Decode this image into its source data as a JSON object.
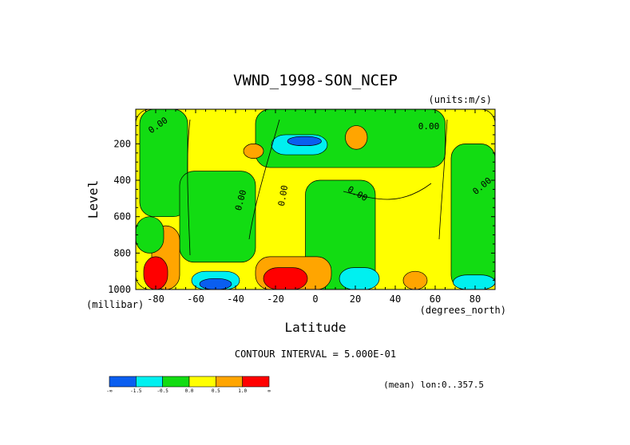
{
  "chart_data": {
    "type": "heatmap",
    "title": "VWND_1998-SON_NCEP",
    "units": "(units:m/s)",
    "xlabel": "Latitude",
    "xunits": "(degrees_north)",
    "ylabel": "Level",
    "yunits": "(millibar)",
    "xlim": [
      -90,
      90
    ],
    "ylim": [
      1000,
      10
    ],
    "x_ticks": [
      "-80",
      "-60",
      "-40",
      "-20",
      "0",
      "20",
      "40",
      "60",
      "80"
    ],
    "y_ticks": [
      "200",
      "400",
      "600",
      "800",
      "1000"
    ],
    "contour_interval_text": "CONTOUR INTERVAL = 5.000E-01",
    "mean_text": "(mean) lon:0..357.5",
    "contour_labels": [
      "0.00",
      "0.00",
      "0.00",
      "0.00",
      "0.00",
      "0.00"
    ],
    "colorbar": {
      "labels": [
        "-∞",
        "-1.5",
        "-0.5",
        "0.0",
        "0.5",
        "1.0",
        "∞"
      ],
      "colors": [
        "#0a5ef0",
        "#00f0f0",
        "#12dc12",
        "#ffff00",
        "#ffa500",
        "#ff0000"
      ]
    },
    "regions": [
      {
        "level": "0 to 0.5",
        "color": "#ffff00",
        "lat": [
          -90,
          90
        ],
        "p": [
          10,
          1000
        ]
      },
      {
        "level": "-0.5 to 0",
        "color": "#12dc12",
        "lat": [
          -88,
          -64
        ],
        "p": [
          10,
          600
        ]
      },
      {
        "level": "-0.5 to 0",
        "color": "#12dc12",
        "lat": [
          -68,
          -30
        ],
        "p": [
          350,
          850
        ]
      },
      {
        "level": "-0.5 to 0",
        "color": "#12dc12",
        "lat": [
          -30,
          65
        ],
        "p": [
          10,
          330
        ]
      },
      {
        "level": "-0.5 to 0",
        "color": "#12dc12",
        "lat": [
          -5,
          30
        ],
        "p": [
          400,
          1000
        ]
      },
      {
        "level": "-0.5 to 0",
        "color": "#12dc12",
        "lat": [
          68,
          90
        ],
        "p": [
          200,
          1000
        ]
      },
      {
        "level": "-1.5 to -0.5",
        "color": "#00f0f0",
        "lat": [
          -22,
          6
        ],
        "p": [
          150,
          260
        ]
      },
      {
        "level": "< -1.5",
        "color": "#0a5ef0",
        "lat": [
          -14,
          3
        ],
        "p": [
          160,
          210
        ]
      },
      {
        "level": "-1.5 to -0.5",
        "color": "#00f0f0",
        "lat": [
          -62,
          -38
        ],
        "p": [
          900,
          1000
        ]
      },
      {
        "level": "< -1.5",
        "color": "#0a5ef0",
        "lat": [
          -58,
          -42
        ],
        "p": [
          940,
          1000
        ]
      },
      {
        "level": "-1.5 to -0.5",
        "color": "#00f0f0",
        "lat": [
          12,
          32
        ],
        "p": [
          880,
          1000
        ]
      },
      {
        "level": "-1.5 to -0.5",
        "color": "#00f0f0",
        "lat": [
          69,
          90
        ],
        "p": [
          920,
          1000
        ]
      },
      {
        "level": "0.5 to 1.0",
        "color": "#ffa500",
        "lat": [
          -36,
          -26
        ],
        "p": [
          200,
          280
        ]
      },
      {
        "level": "0.5 to 1.0",
        "color": "#ffa500",
        "lat": [
          15,
          26
        ],
        "p": [
          100,
          230
        ]
      },
      {
        "level": "0.5 to 1.0",
        "color": "#ffa500",
        "lat": [
          -30,
          8
        ],
        "p": [
          820,
          1000
        ]
      },
      {
        "level": "> 1.0",
        "color": "#ff0000",
        "lat": [
          -26,
          -4
        ],
        "p": [
          880,
          1000
        ]
      },
      {
        "level": "0.5 to 1.0",
        "color": "#ffa500",
        "lat": [
          -82,
          -68
        ],
        "p": [
          650,
          1000
        ]
      },
      {
        "level": "> 1.0",
        "color": "#ff0000",
        "lat": [
          -86,
          -74
        ],
        "p": [
          820,
          1000
        ]
      },
      {
        "level": "0.5 to 1.0",
        "color": "#ffa500",
        "lat": [
          44,
          56
        ],
        "p": [
          900,
          1000
        ]
      },
      {
        "level": "-0.5 to 0",
        "color": "#12dc12",
        "lat": [
          -90,
          -76
        ],
        "p": [
          600,
          800
        ]
      }
    ]
  }
}
